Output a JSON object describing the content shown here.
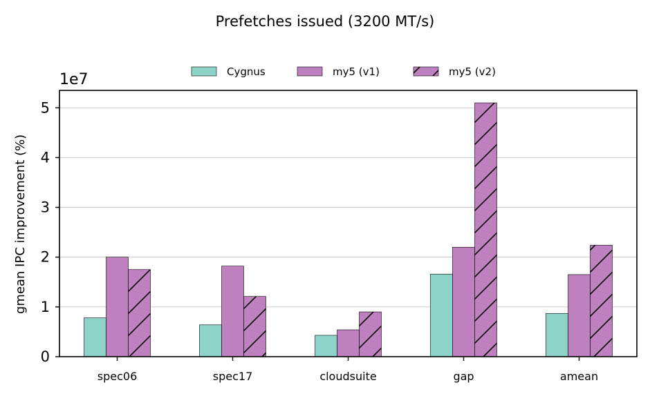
{
  "chart_data": {
    "type": "bar",
    "title": "Prefetches issued (3200 MT/s)",
    "ylabel": "gmean IPC improvement (%)",
    "xlabel": "",
    "y_offset_label": "1e7",
    "ylim": [
      0,
      5.35
    ],
    "yticks": [
      0,
      1,
      2,
      3,
      4,
      5
    ],
    "grid": "y",
    "legend_position": "top-center",
    "categories": [
      "spec06",
      "spec17",
      "cloudsuite",
      "gap",
      "amean"
    ],
    "series": [
      {
        "name": "Cygnus",
        "color": "#8dd3c7",
        "hatch": false,
        "values": [
          0.78,
          0.64,
          0.43,
          1.66,
          0.87
        ]
      },
      {
        "name": "my5 (v1)",
        "color": "#be80be",
        "hatch": false,
        "values": [
          2.0,
          1.82,
          0.54,
          2.2,
          1.65
        ]
      },
      {
        "name": "my5 (v2)",
        "color": "#be80be",
        "hatch": true,
        "values": [
          1.75,
          1.21,
          0.9,
          5.1,
          2.24
        ]
      }
    ]
  }
}
